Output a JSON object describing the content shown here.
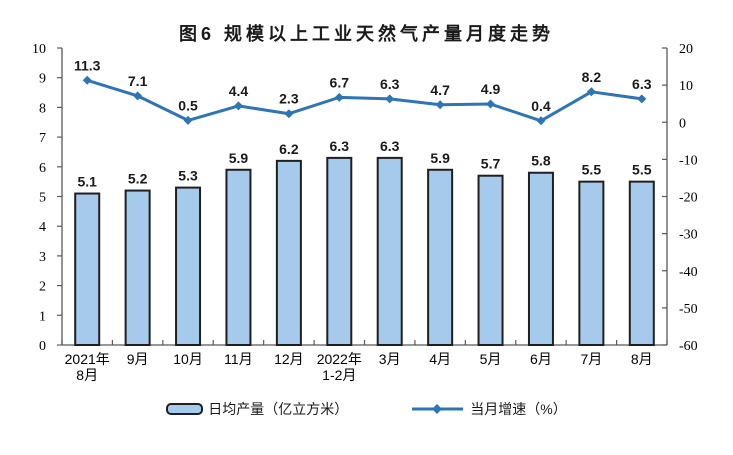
{
  "title": "图6 规模以上工业天然气产量月度走势",
  "colors": {
    "bar_fill": "#A6CAEC",
    "bar_stroke": "#1F1F1F",
    "line": "#2E75B6",
    "axis": "#595959",
    "tick_text": "#000000",
    "data_label": "#1A1A1A",
    "background": "#FFFFFF"
  },
  "chart_data": {
    "type": "combo",
    "title": "图6 规模以上工业天然气产量月度走势",
    "categories": [
      "2021年\n8月",
      "9月",
      "10月",
      "11月",
      "12月",
      "2022年\n1-2月",
      "3月",
      "4月",
      "5月",
      "6月",
      "7月",
      "8月"
    ],
    "series": [
      {
        "name": "日均产量（亿立方米）",
        "type": "bar",
        "axis": "left",
        "values": [
          5.1,
          5.2,
          5.3,
          5.9,
          6.2,
          6.3,
          6.3,
          5.9,
          5.7,
          5.8,
          5.5,
          5.5
        ]
      },
      {
        "name": "当月增速（%）",
        "type": "line",
        "marker": "diamond",
        "axis": "right",
        "values": [
          11.3,
          7.1,
          0.5,
          4.4,
          2.3,
          6.7,
          6.3,
          4.7,
          4.9,
          0.4,
          8.2,
          6.3
        ]
      }
    ],
    "left_axis": {
      "min": 0,
      "max": 10,
      "step": 1
    },
    "right_axis": {
      "min": -60,
      "max": 20,
      "step": 10
    },
    "grid": false,
    "data_labels": true,
    "legend_position": "bottom"
  }
}
